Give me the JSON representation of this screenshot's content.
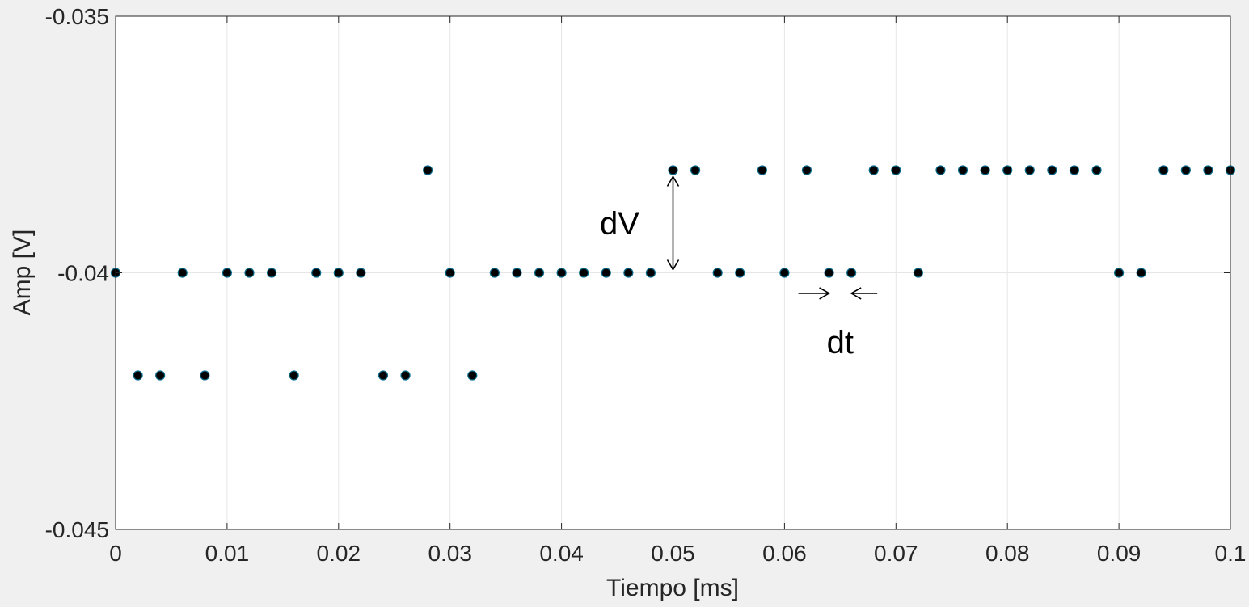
{
  "chart_data": {
    "type": "scatter",
    "title": "",
    "xlabel": "Tiempo [ms]",
    "ylabel": "Amp [V]",
    "xlim": [
      0,
      0.1
    ],
    "ylim": [
      -0.045,
      -0.035
    ],
    "grid": true,
    "xticks": [
      0,
      0.01,
      0.02,
      0.03,
      0.04,
      0.05,
      0.06,
      0.07,
      0.08,
      0.09,
      0.1
    ],
    "xtick_labels": [
      "0",
      "0.01",
      "0.02",
      "0.03",
      "0.04",
      "0.05",
      "0.06",
      "0.07",
      "0.08",
      "0.09",
      "0.1"
    ],
    "yticks": [
      -0.045,
      -0.04,
      -0.035
    ],
    "ytick_labels": [
      "-0.045",
      "-0.04",
      "-0.035"
    ],
    "marker_color": "#000000",
    "marker_edge_color": "#0b6a8a",
    "series": [
      {
        "points": [
          [
            0,
            -0.04
          ],
          [
            0.002,
            -0.042
          ],
          [
            0.004,
            -0.042
          ],
          [
            0.006,
            -0.04
          ],
          [
            0.008,
            -0.042
          ],
          [
            0.01,
            -0.04
          ],
          [
            0.012,
            -0.04
          ],
          [
            0.014,
            -0.04
          ],
          [
            0.016,
            -0.042
          ],
          [
            0.018,
            -0.04
          ],
          [
            0.02,
            -0.04
          ],
          [
            0.022,
            -0.04
          ],
          [
            0.024,
            -0.042
          ],
          [
            0.026,
            -0.042
          ],
          [
            0.028,
            -0.038
          ],
          [
            0.03,
            -0.04
          ],
          [
            0.032,
            -0.042
          ],
          [
            0.034,
            -0.04
          ],
          [
            0.036,
            -0.04
          ],
          [
            0.038,
            -0.04
          ],
          [
            0.04,
            -0.04
          ],
          [
            0.042,
            -0.04
          ],
          [
            0.044,
            -0.04
          ],
          [
            0.046,
            -0.04
          ],
          [
            0.048,
            -0.04
          ],
          [
            0.05,
            -0.038
          ],
          [
            0.052,
            -0.038
          ],
          [
            0.054,
            -0.04
          ],
          [
            0.056,
            -0.04
          ],
          [
            0.058,
            -0.038
          ],
          [
            0.06,
            -0.04
          ],
          [
            0.062,
            -0.038
          ],
          [
            0.064,
            -0.04
          ],
          [
            0.066,
            -0.04
          ],
          [
            0.068,
            -0.038
          ],
          [
            0.07,
            -0.038
          ],
          [
            0.072,
            -0.04
          ],
          [
            0.074,
            -0.038
          ],
          [
            0.076,
            -0.038
          ],
          [
            0.078,
            -0.038
          ],
          [
            0.08,
            -0.038
          ],
          [
            0.082,
            -0.038
          ],
          [
            0.084,
            -0.038
          ],
          [
            0.086,
            -0.038
          ],
          [
            0.088,
            -0.038
          ],
          [
            0.09,
            -0.04
          ],
          [
            0.092,
            -0.04
          ],
          [
            0.094,
            -0.038
          ],
          [
            0.096,
            -0.038
          ],
          [
            0.098,
            -0.038
          ],
          [
            0.1,
            -0.038
          ]
        ]
      }
    ],
    "annotations": [
      {
        "text": "dV",
        "type": "double-arrow-vertical",
        "x": 0.05,
        "y_from": -0.038,
        "y_to": -0.04
      },
      {
        "text": "dt",
        "type": "inward-arrows-horizontal",
        "x_from": 0.064,
        "x_to": 0.066,
        "y": -0.0404
      }
    ]
  }
}
